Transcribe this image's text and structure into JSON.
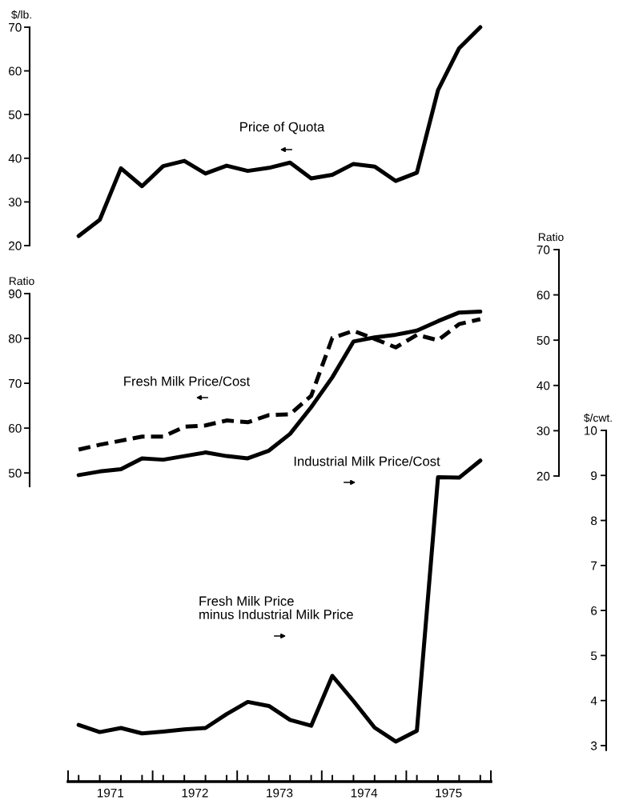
{
  "chart_data": [
    {
      "type": "line",
      "ylabel": "$/lb.",
      "ylim": [
        20,
        70
      ],
      "yticks": [
        20,
        30,
        40,
        50,
        60,
        70
      ],
      "tick_labels": "y",
      "categories": [
        null,
        null,
        null,
        null,
        null,
        null,
        null,
        null,
        null,
        null,
        null,
        null,
        null,
        null,
        null,
        null,
        null,
        null,
        null,
        null
      ],
      "series": [
        {
          "name": "Price of Quota",
          "color": "#000000",
          "values": [
            22.2,
            25.9,
            37.7,
            33.6,
            38.2,
            39.4,
            36.5,
            38.3,
            37.1,
            37.8,
            39.0,
            35.4,
            36.2,
            38.7,
            38.1,
            34.8,
            36.7,
            55.6,
            65.2,
            70.0
          ]
        }
      ]
    },
    {
      "type": "line",
      "ylabel": "Ratio",
      "y2label": "Ratio",
      "ylim": [
        47,
        90
      ],
      "yticks": [
        50,
        60,
        70,
        80,
        90
      ],
      "y2lim": [
        20,
        70
      ],
      "y2ticks": [
        20,
        30,
        40,
        50,
        60,
        70
      ],
      "tick_labels": "y",
      "categories": [
        null,
        null,
        null,
        null,
        null,
        null,
        null,
        null,
        null,
        null,
        null,
        null,
        null,
        null,
        null,
        null,
        null,
        null,
        null,
        null
      ],
      "series": [
        {
          "name": "Fresh Milk Price/Cost",
          "color": "#000000",
          "line_style": "dashed",
          "values": [
            55.2,
            56.3,
            57.2,
            58.1,
            58.1,
            60.3,
            60.6,
            61.7,
            61.3,
            62.9,
            63.1,
            67.2,
            80.1,
            81.7,
            79.9,
            78.0,
            80.8,
            79.6,
            83.2,
            84.3
          ]
        },
        {
          "name": "Industrial Milk Price/Cost",
          "color": "#000000",
          "axis": "y2",
          "values": [
            20.2,
            21.0,
            21.5,
            23.9,
            23.6,
            24.4,
            25.2,
            24.4,
            23.9,
            25.6,
            29.3,
            35.2,
            41.8,
            49.7,
            50.6,
            51.2,
            52.1,
            54.2,
            56.1,
            56.3
          ]
        }
      ]
    },
    {
      "type": "line",
      "y2label": "$/cwt.",
      "xlim": [
        1971,
        1976
      ],
      "y2lim": [
        2.2,
        10
      ],
      "y2ticks": [
        3,
        4,
        5,
        6,
        7,
        8,
        9,
        10
      ],
      "xticks": [
        {
          "value": 1971,
          "label": null
        },
        {
          "value": 1971.125,
          "label": null
        },
        {
          "value": 1971.375,
          "label": null
        },
        {
          "value": 1971.5,
          "label": "1971"
        },
        {
          "value": 1971.625,
          "label": null
        },
        {
          "value": 1971.875,
          "label": null
        },
        {
          "value": 1972,
          "label": null
        },
        {
          "value": 1972.125,
          "label": null
        },
        {
          "value": 1972.375,
          "label": null
        },
        {
          "value": 1972.5,
          "label": "1972"
        },
        {
          "value": 1972.625,
          "label": null
        },
        {
          "value": 1972.875,
          "label": null
        },
        {
          "value": 1973,
          "label": null
        },
        {
          "value": 1973.125,
          "label": null
        },
        {
          "value": 1973.375,
          "label": null
        },
        {
          "value": 1973.5,
          "label": "1973"
        },
        {
          "value": 1973.625,
          "label": null
        },
        {
          "value": 1973.875,
          "label": null
        },
        {
          "value": 1974,
          "label": null
        },
        {
          "value": 1974.125,
          "label": null
        },
        {
          "value": 1974.375,
          "label": null
        },
        {
          "value": 1974.5,
          "label": "1974"
        },
        {
          "value": 1974.625,
          "label": null
        },
        {
          "value": 1974.875,
          "label": null
        },
        {
          "value": 1975,
          "label": null
        },
        {
          "value": 1975.125,
          "label": null
        },
        {
          "value": 1975.375,
          "label": null
        },
        {
          "value": 1975.5,
          "label": "1975"
        },
        {
          "value": 1975.625,
          "label": null
        },
        {
          "value": 1975.875,
          "label": null
        },
        {
          "value": 1976,
          "label": null
        }
      ],
      "x": [
        1971.125,
        1971.375,
        1971.625,
        1971.875,
        1972.125,
        1972.375,
        1972.625,
        1972.875,
        1973.125,
        1973.375,
        1973.625,
        1973.875,
        1974.125,
        1974.375,
        1974.625,
        1974.875,
        1975.125,
        1975.375,
        1975.625,
        1975.875
      ],
      "series": [
        {
          "name": "Fresh Milk Price\nminus Industrial Milk Price",
          "color": "#000000",
          "axis": "y2",
          "values": [
            3.46,
            3.3,
            3.39,
            3.27,
            3.31,
            3.36,
            3.39,
            3.7,
            3.97,
            3.88,
            3.57,
            3.44,
            4.55,
            3.99,
            3.4,
            3.09,
            3.33,
            8.96,
            8.95,
            9.33
          ]
        }
      ]
    }
  ]
}
